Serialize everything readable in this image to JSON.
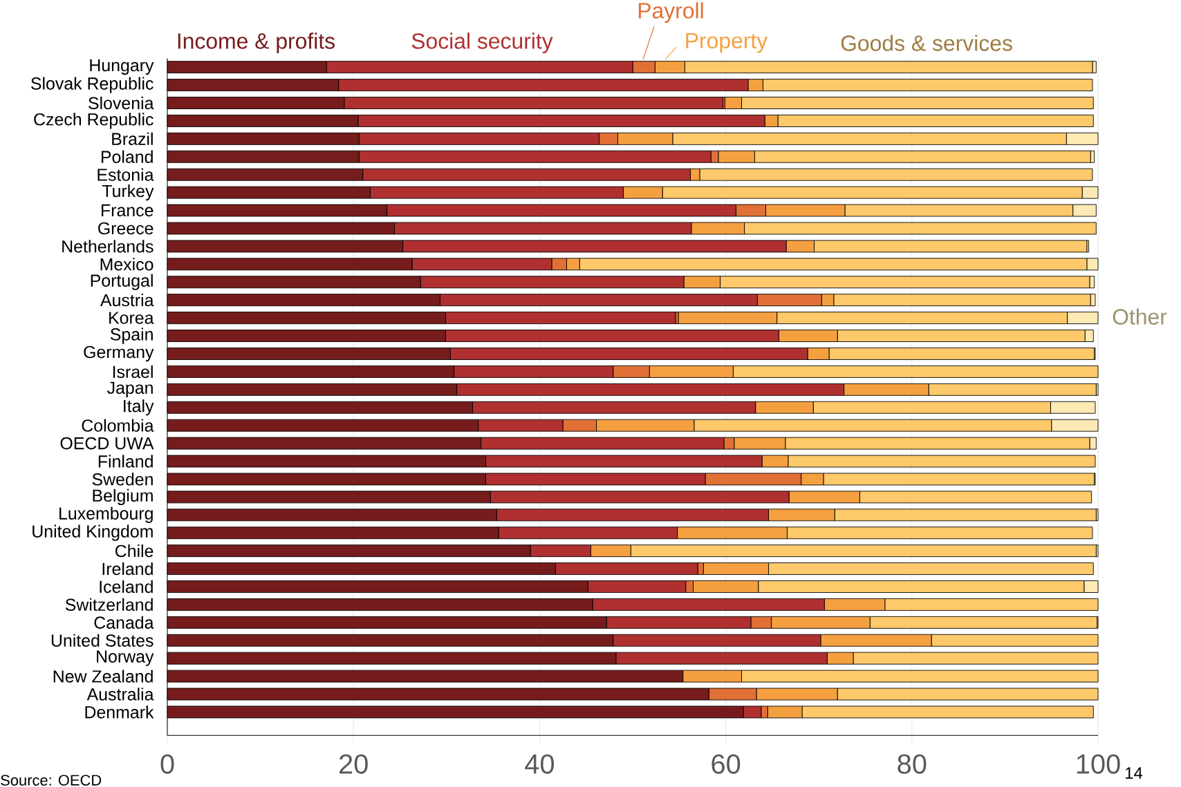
{
  "chart_data": {
    "type": "bar",
    "orientation": "horizontal",
    "stacked": true,
    "grid": "x",
    "categories": [
      "Hungary",
      "Slovak Republic",
      "Slovenia",
      "Czech Republic",
      "Brazil",
      "Poland",
      "Estonia",
      "Turkey",
      "France",
      "Greece",
      "Netherlands",
      "Mexico",
      "Portugal",
      "Austria",
      "Korea",
      "Spain",
      "Germany",
      "Israel",
      "Japan",
      "Italy",
      "Colombia",
      "OECD UWA",
      "Finland",
      "Sweden",
      "Belgium",
      "Luxembourg",
      "United Kingdom",
      "Chile",
      "Ireland",
      "Iceland",
      "Switzerland",
      "Canada",
      "United States",
      "Norway",
      "New Zealand",
      "Australia",
      "Denmark"
    ],
    "series": [
      {
        "name": "Income & profits",
        "color": "#761c1c",
        "values": [
          17.1,
          18.4,
          19.0,
          20.5,
          20.6,
          20.6,
          21.0,
          21.8,
          23.6,
          24.4,
          25.3,
          26.3,
          27.2,
          29.3,
          29.9,
          29.9,
          30.4,
          30.8,
          31.1,
          32.8,
          33.4,
          33.7,
          34.2,
          34.2,
          34.7,
          35.4,
          35.6,
          39.0,
          41.7,
          45.2,
          45.7,
          47.2,
          47.9,
          48.2,
          55.4,
          58.2,
          61.9
        ]
      },
      {
        "name": "Social security",
        "color": "#b03030",
        "values": [
          32.9,
          44.0,
          40.7,
          43.7,
          25.8,
          37.8,
          35.2,
          27.2,
          37.5,
          31.9,
          41.2,
          15.0,
          28.3,
          34.1,
          24.7,
          35.8,
          38.4,
          17.1,
          41.6,
          30.4,
          9.1,
          26.1,
          29.7,
          23.6,
          32.1,
          29.2,
          19.2,
          6.5,
          15.3,
          10.5,
          24.9,
          15.5,
          22.3,
          22.7,
          0,
          0,
          1.9
        ]
      },
      {
        "name": "Payroll",
        "color": "#e07035",
        "values": [
          2.4,
          0,
          0.2,
          0,
          2.0,
          0.8,
          0,
          0,
          3.2,
          0,
          0,
          1.6,
          0,
          6.9,
          0.3,
          0,
          0,
          3.9,
          0,
          0,
          3.6,
          1.1,
          0,
          10.3,
          0,
          0,
          0,
          0,
          0.6,
          0.8,
          0,
          2.2,
          0,
          0,
          0,
          5.1,
          0.7
        ]
      },
      {
        "name": "Property",
        "color": "#f5a040",
        "values": [
          3.2,
          1.6,
          1.8,
          1.4,
          5.9,
          3.9,
          1.0,
          4.2,
          8.5,
          5.7,
          3.0,
          1.4,
          3.9,
          1.3,
          10.6,
          6.3,
          2.3,
          9.0,
          9.1,
          6.2,
          10.5,
          5.5,
          2.8,
          2.4,
          7.6,
          7.1,
          11.8,
          4.3,
          7.0,
          7.0,
          6.5,
          10.6,
          11.9,
          2.8,
          6.3,
          8.7,
          3.7
        ]
      },
      {
        "name": "Goods & services",
        "color": "#fdc96a",
        "values": [
          43.8,
          35.4,
          37.8,
          33.9,
          42.3,
          36.1,
          42.2,
          45.1,
          24.5,
          37.8,
          29.3,
          54.5,
          39.7,
          27.6,
          31.2,
          26.6,
          28.5,
          39.2,
          18.0,
          25.5,
          38.4,
          32.7,
          33.0,
          29.1,
          24.9,
          28.1,
          32.8,
          50.0,
          34.9,
          35.0,
          22.9,
          24.4,
          17.9,
          26.3,
          38.3,
          28.0,
          31.3
        ]
      },
      {
        "name": "Other",
        "color": "#fde9b4",
        "values": [
          0.4,
          0,
          0,
          null,
          3.4,
          0.4,
          0,
          1.7,
          2.5,
          0,
          0.2,
          1.2,
          0.5,
          0.5,
          3.3,
          0.9,
          0.1,
          0,
          0.2,
          4.8,
          5.0,
          0.7,
          null,
          0.1,
          0,
          0.2,
          0,
          0.2,
          0,
          1.5,
          0,
          0.1,
          0,
          0,
          0,
          0,
          0
        ]
      }
    ],
    "xlim": [
      0,
      100
    ],
    "xticks": [
      0,
      20,
      40,
      60,
      80,
      100
    ],
    "annotations": [
      "Source: OECD",
      "14"
    ]
  }
}
